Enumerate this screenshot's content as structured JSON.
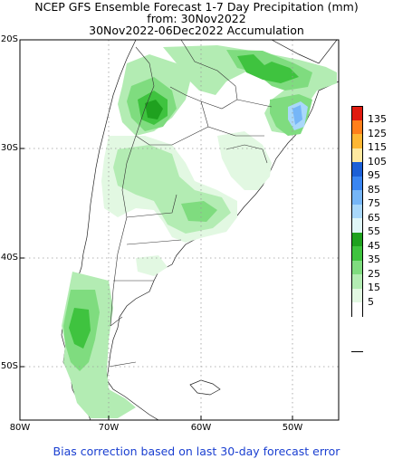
{
  "title": {
    "line1": "NCEP GFS Ensemble Forecast 1-7 Day Precipitation (mm)",
    "line2": "from: 30Nov2022",
    "line3": "30Nov2022-06Dec2022 Accumulation"
  },
  "lat_labels": [
    "20S",
    "30S",
    "40S",
    "50S"
  ],
  "lon_labels": [
    "80W",
    "70W",
    "60W",
    "50W"
  ],
  "legend": {
    "levels": [
      "135",
      "125",
      "115",
      "105",
      "95",
      "85",
      "75",
      "65",
      "55",
      "45",
      "35",
      "25",
      "15",
      "5"
    ],
    "colors": [
      "#e01b10",
      "#ff7f1a",
      "#ffb733",
      "#ffe9a0",
      "#1c5fd6",
      "#3a86f2",
      "#76b6f7",
      "#a9d8fa",
      "#dff6f7",
      "#1fa11f",
      "#3fc33f",
      "#7fdc7f",
      "#b3ecb3",
      "#e2f8e2",
      "#ffffff"
    ]
  },
  "footer": "Bias correction based on last 30-day forecast error",
  "colors": {
    "ocean": "#ffffff",
    "land": "#ffffff",
    "grid": "#9a9a9a"
  }
}
